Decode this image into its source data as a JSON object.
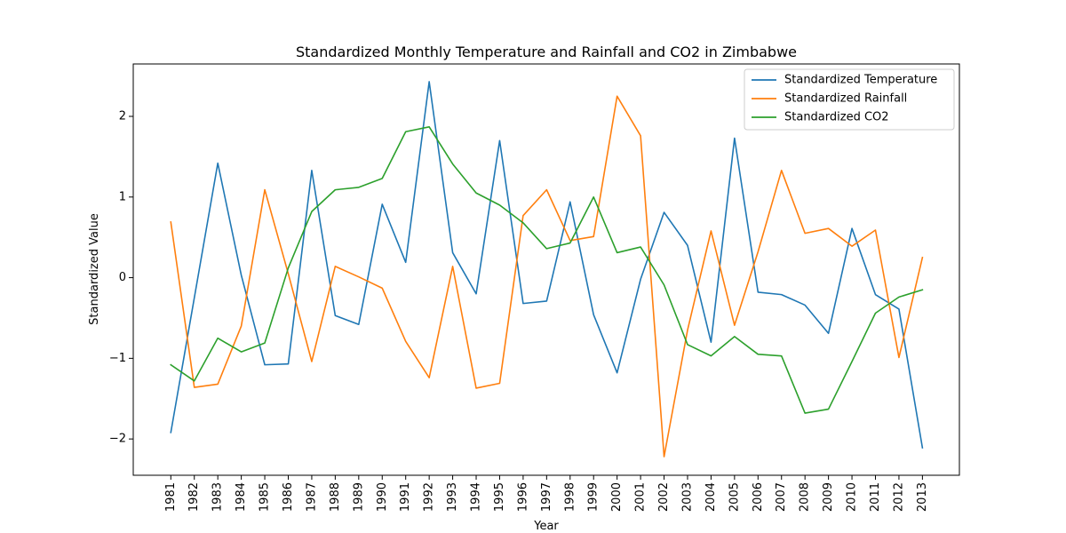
{
  "chart_data": {
    "type": "line",
    "title": "Standardized Monthly Temperature and Rainfall and CO2 in Zimbabwe",
    "xlabel": "Year",
    "ylabel": "Standardized Value",
    "x": [
      "1981",
      "1982",
      "1983",
      "1984",
      "1985",
      "1986",
      "1987",
      "1988",
      "1989",
      "1990",
      "1991",
      "1992",
      "1993",
      "1994",
      "1995",
      "1996",
      "1997",
      "1998",
      "1999",
      "2000",
      "2001",
      "2002",
      "2003",
      "2004",
      "2005",
      "2006",
      "2007",
      "2008",
      "2009",
      "2010",
      "2011",
      "2012",
      "2013"
    ],
    "ylim": [
      -2.45,
      2.65
    ],
    "yticks": [
      -2,
      -1,
      0,
      1,
      2
    ],
    "ytick_labels": [
      "−2",
      "−1",
      "0",
      "1",
      "2"
    ],
    "grid": false,
    "legend_position": "top-right",
    "series": [
      {
        "name": "Standardized Temperature",
        "color": "#1f77b4",
        "values": [
          -1.92,
          -0.25,
          1.42,
          0.03,
          -1.08,
          -1.07,
          1.33,
          -0.47,
          -0.58,
          0.91,
          0.19,
          2.43,
          0.31,
          -0.2,
          1.7,
          -0.32,
          -0.29,
          0.94,
          -0.46,
          -1.18,
          -0.02,
          0.81,
          0.4,
          -0.8,
          1.73,
          -0.18,
          -0.21,
          -0.34,
          -0.69,
          0.61,
          -0.21,
          -0.39,
          -2.11
        ]
      },
      {
        "name": "Standardized Rainfall",
        "color": "#ff7f0e",
        "values": [
          0.69,
          -1.36,
          -1.32,
          -0.6,
          1.09,
          0.05,
          -1.04,
          0.14,
          0.01,
          -0.13,
          -0.79,
          -1.24,
          0.14,
          -1.37,
          -1.31,
          0.77,
          1.09,
          0.46,
          0.51,
          2.25,
          1.76,
          -2.22,
          -0.65,
          0.58,
          -0.59,
          0.32,
          1.33,
          0.55,
          0.61,
          0.39,
          0.59,
          -0.99,
          0.25
        ]
      },
      {
        "name": "Standardized CO2",
        "color": "#2ca02c",
        "values": [
          -1.08,
          -1.28,
          -0.75,
          -0.92,
          -0.81,
          0.12,
          0.82,
          1.09,
          1.12,
          1.23,
          1.81,
          1.87,
          1.41,
          1.05,
          0.9,
          0.68,
          0.36,
          0.43,
          1.0,
          0.31,
          0.38,
          -0.09,
          -0.83,
          -0.97,
          -0.73,
          -0.95,
          -0.97,
          -1.68,
          -1.63,
          -1.04,
          -0.44,
          -0.24,
          -0.15
        ]
      }
    ]
  }
}
